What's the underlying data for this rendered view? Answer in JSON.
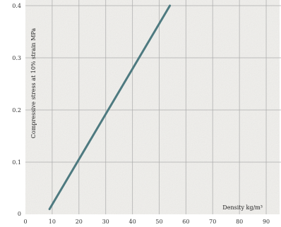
{
  "chart_data": {
    "type": "line",
    "title": "",
    "xlabel": "Density kg/m³",
    "ylabel": "Compressive stress at 10% strain MPa",
    "x_ticks": [
      "0",
      "10",
      "20",
      "30",
      "40",
      "50",
      "60",
      "70",
      "80",
      "90"
    ],
    "y_ticks": [
      "0",
      "0.1",
      "0.2",
      "0.3",
      "0.4"
    ],
    "xlim": [
      0,
      95
    ],
    "ylim": [
      0,
      0.4
    ],
    "grid": true,
    "series": [
      {
        "x": [
          9,
          54
        ],
        "y": [
          0.01,
          0.4
        ]
      }
    ],
    "colors": {
      "line": "#4e7a80",
      "grid": "#a9a9a9",
      "paper": "#f0efec"
    }
  }
}
